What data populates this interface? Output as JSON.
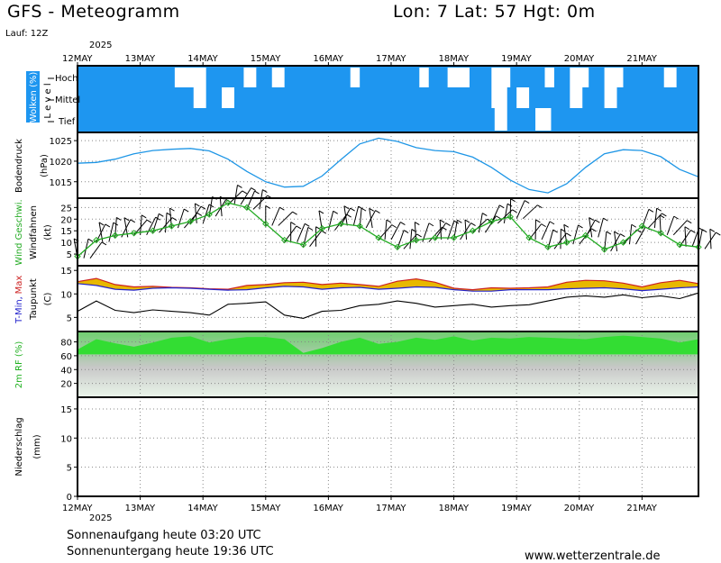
{
  "header": {
    "title": "GFS - Meteogramm",
    "location": "Lon: 7 Lat: 57 Hgt: 0m",
    "run": "Lauf: 12Z",
    "year": "2025"
  },
  "footer": {
    "sunrise": "Sonnenaufgang heute 03:20 UTC",
    "sunset": "Sonnenuntergang heute 19:36 UTC",
    "site": "www.wetterzentrale.de"
  },
  "colors": {
    "cloud_blue": "#1e96f0",
    "pressure_line": "#1e96e6",
    "wind_green": "#22aa22",
    "tmin_blue": "#2222cc",
    "tmax_red": "#cc2222",
    "temp_fill": "#e8b800",
    "rh_green": "#33dd33"
  },
  "chart_data": {
    "type": "line",
    "x_days": [
      "12MAY",
      "13MAY",
      "14MAY",
      "15MAY",
      "16MAY",
      "17MAY",
      "18MAY",
      "19MAY",
      "20MAY",
      "21MAY"
    ],
    "grid": "dotted",
    "panels": [
      {
        "name": "clouds",
        "ylabel": "Wolken (%)",
        "levels": [
          "Hoch",
          "Mittel",
          "Tief"
        ],
        "level_axis": "L e v e l",
        "clear_gaps": [
          {
            "level": "Hoch",
            "from": 1.55,
            "to": 2.05
          },
          {
            "level": "Hoch",
            "from": 2.65,
            "to": 2.85
          },
          {
            "level": "Hoch",
            "from": 3.1,
            "to": 3.3
          },
          {
            "level": "Hoch",
            "from": 4.35,
            "to": 4.5
          },
          {
            "level": "Hoch",
            "from": 5.45,
            "to": 5.6
          },
          {
            "level": "Hoch",
            "from": 5.9,
            "to": 6.25
          },
          {
            "level": "Hoch",
            "from": 6.6,
            "to": 6.9
          },
          {
            "level": "Hoch",
            "from": 7.45,
            "to": 7.6
          },
          {
            "level": "Hoch",
            "from": 7.85,
            "to": 8.15
          },
          {
            "level": "Hoch",
            "from": 8.4,
            "to": 8.7
          },
          {
            "level": "Hoch",
            "from": 9.35,
            "to": 9.55
          },
          {
            "level": "Mittel",
            "from": 1.85,
            "to": 2.05
          },
          {
            "level": "Mittel",
            "from": 2.3,
            "to": 2.5
          },
          {
            "level": "Mittel",
            "from": 6.6,
            "to": 6.85
          },
          {
            "level": "Mittel",
            "from": 7.0,
            "to": 7.2
          },
          {
            "level": "Mittel",
            "from": 7.85,
            "to": 8.05
          },
          {
            "level": "Mittel",
            "from": 8.4,
            "to": 8.6
          },
          {
            "level": "Tief",
            "from": 6.65,
            "to": 6.85
          },
          {
            "level": "Tief",
            "from": 7.3,
            "to": 7.55
          }
        ]
      },
      {
        "name": "pressure",
        "ylabel": "Bodendruck",
        "unit": "(hPa)",
        "ylim": [
          1011,
          1027
        ],
        "ticks": [
          1015,
          1020,
          1025
        ],
        "x": [
          0.0,
          0.3,
          0.6,
          0.9,
          1.2,
          1.5,
          1.8,
          2.1,
          2.4,
          2.7,
          3.0,
          3.3,
          3.6,
          3.9,
          4.2,
          4.5,
          4.8,
          5.1,
          5.4,
          5.7,
          6.0,
          6.3,
          6.6,
          6.9,
          7.2,
          7.5,
          7.8,
          8.1,
          8.4,
          8.7,
          9.0,
          9.3,
          9.6,
          9.9
        ],
        "values": [
          1019.5,
          1019.7,
          1020.5,
          1021.8,
          1022.6,
          1022.9,
          1023.1,
          1022.5,
          1020.5,
          1017.5,
          1015.0,
          1013.7,
          1013.9,
          1016.4,
          1020.4,
          1024.2,
          1025.6,
          1024.8,
          1023.3,
          1022.6,
          1022.3,
          1021.0,
          1018.5,
          1015.4,
          1013.1,
          1012.3,
          1014.5,
          1018.5,
          1021.8,
          1022.8,
          1022.6,
          1021.1,
          1018.0,
          1016.2
        ]
      },
      {
        "name": "wind",
        "ylabel": "Wind Geschwi.",
        "ylabel2": "Windfahnen",
        "unit": "(kt)",
        "ylim": [
          0,
          29
        ],
        "ticks": [
          5,
          10,
          15,
          20,
          25
        ],
        "x": [
          0.0,
          0.3,
          0.6,
          0.9,
          1.2,
          1.5,
          1.8,
          2.1,
          2.4,
          2.7,
          3.0,
          3.3,
          3.6,
          3.9,
          4.2,
          4.5,
          4.8,
          5.1,
          5.4,
          5.7,
          6.0,
          6.3,
          6.6,
          6.9,
          7.2,
          7.5,
          7.8,
          8.1,
          8.4,
          8.7,
          9.0,
          9.3,
          9.6,
          9.9
        ],
        "values": [
          4,
          11,
          13,
          14,
          15,
          17,
          19,
          22,
          27,
          25,
          18,
          11,
          9,
          16,
          18,
          17,
          12,
          8,
          11,
          12,
          12,
          15,
          19,
          21,
          12,
          8,
          10,
          13,
          7,
          10,
          17,
          14,
          9,
          8
        ]
      },
      {
        "name": "temperature",
        "ylabel": "T-Min, Max",
        "ylabel_tmin": "T-Min,",
        "ylabel_tmax": "Max",
        "ylabel2": "Taupunkt",
        "unit": "(C)",
        "ylim": [
          2,
          16
        ],
        "ticks": [
          5,
          10,
          15
        ],
        "x": [
          0.0,
          0.3,
          0.6,
          0.9,
          1.2,
          1.5,
          1.8,
          2.1,
          2.4,
          2.7,
          3.0,
          3.3,
          3.6,
          3.9,
          4.2,
          4.5,
          4.8,
          5.1,
          5.4,
          5.7,
          6.0,
          6.3,
          6.6,
          6.9,
          7.2,
          7.5,
          7.8,
          8.1,
          8.4,
          8.7,
          9.0,
          9.3,
          9.6,
          9.9
        ],
        "tmin": [
          12.2,
          11.8,
          11.0,
          10.8,
          11.2,
          11.3,
          11.2,
          11.0,
          10.8,
          10.9,
          11.3,
          11.6,
          11.5,
          11.0,
          11.3,
          11.4,
          11.0,
          11.2,
          11.5,
          11.4,
          10.9,
          10.6,
          10.6,
          10.9,
          10.9,
          10.9,
          11.1,
          11.2,
          11.3,
          11.1,
          10.7,
          11.0,
          11.3,
          11.5
        ],
        "tmax": [
          12.6,
          13.3,
          12.0,
          11.5,
          11.6,
          11.4,
          11.3,
          11.1,
          11.0,
          11.8,
          12.0,
          12.4,
          12.5,
          12.0,
          12.3,
          12.0,
          11.6,
          12.7,
          13.2,
          12.5,
          11.2,
          10.9,
          11.3,
          11.2,
          11.3,
          11.5,
          12.5,
          12.9,
          12.8,
          12.3,
          11.5,
          12.4,
          12.9,
          12.2
        ],
        "dewpoint": [
          6.3,
          8.5,
          6.5,
          6.0,
          6.6,
          6.3,
          6.0,
          5.5,
          7.8,
          8.0,
          8.3,
          5.5,
          4.8,
          6.3,
          6.5,
          7.5,
          7.8,
          8.5,
          8.0,
          7.2,
          7.5,
          7.8,
          7.2,
          7.5,
          7.7,
          8.5,
          9.3,
          9.6,
          9.3,
          9.8,
          9.2,
          9.6,
          9.0,
          10.2
        ]
      },
      {
        "name": "humidity",
        "ylabel": "2m RF (%)",
        "ylim": [
          0,
          95
        ],
        "ticks": [
          20,
          40,
          60,
          80
        ],
        "x": [
          0.0,
          0.3,
          0.6,
          0.9,
          1.2,
          1.5,
          1.8,
          2.1,
          2.4,
          2.7,
          3.0,
          3.3,
          3.6,
          3.9,
          4.2,
          4.5,
          4.8,
          5.1,
          5.4,
          5.7,
          6.0,
          6.3,
          6.6,
          6.9,
          7.2,
          7.5,
          7.8,
          8.1,
          8.4,
          8.7,
          9.0,
          9.3,
          9.6,
          9.9
        ],
        "values": [
          69,
          84,
          78,
          73,
          79,
          86,
          88,
          79,
          84,
          87,
          87,
          84,
          64,
          71,
          80,
          86,
          77,
          80,
          86,
          83,
          88,
          82,
          86,
          85,
          87,
          86,
          85,
          84,
          87,
          89,
          87,
          85,
          79,
          84
        ]
      },
      {
        "name": "precipitation",
        "ylabel": "Niederschlag",
        "unit": "(mm)",
        "ylim": [
          0,
          17
        ],
        "ticks": [
          0,
          5,
          10,
          15
        ],
        "values": []
      }
    ]
  }
}
